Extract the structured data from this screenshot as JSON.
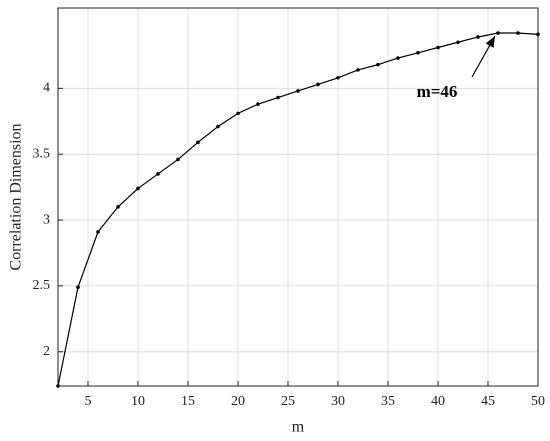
{
  "chart_data": {
    "type": "line",
    "x_label": "m",
    "y_label": "Correlation Dimension",
    "x": [
      2,
      4,
      6,
      8,
      10,
      12,
      14,
      16,
      18,
      20,
      22,
      24,
      26,
      28,
      30,
      32,
      34,
      36,
      38,
      40,
      42,
      44,
      46,
      48,
      50
    ],
    "series": [
      {
        "color": "#000000",
        "values": [
          1.74,
          2.49,
          2.91,
          3.1,
          3.24,
          3.35,
          3.46,
          3.59,
          3.71,
          3.81,
          3.88,
          3.93,
          3.98,
          4.03,
          4.08,
          4.14,
          4.18,
          4.23,
          4.27,
          4.31,
          4.35,
          4.39,
          4.42,
          4.42,
          4.41
        ]
      }
    ],
    "xlim": [
      2,
      50
    ],
    "xticks": [
      5,
      10,
      15,
      20,
      25,
      30,
      35,
      40,
      45,
      50
    ],
    "ylim": [
      1.74,
      4.61
    ],
    "yticks": [
      2,
      2.5,
      3,
      3.5,
      4
    ],
    "grid": true,
    "annotations": [
      {
        "text": "m=46"
      }
    ]
  }
}
